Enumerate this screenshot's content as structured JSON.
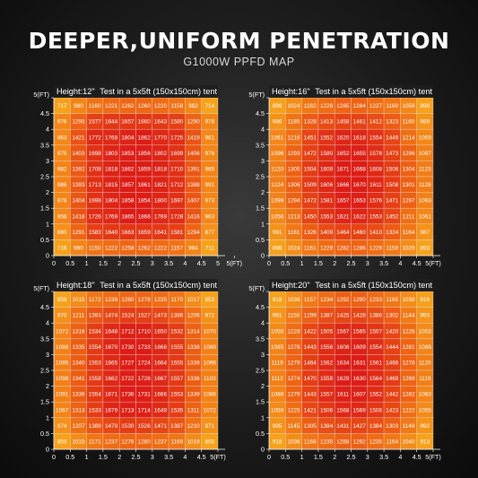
{
  "header": {
    "title": "DEEPER,UNIFORM PENETRATION",
    "subtitle": "G1000W PPFD MAP"
  },
  "colors": {
    "low": "#f6a21c",
    "mid": "#ee6414",
    "high": "#dc1c16",
    "background": "#1c1c1c"
  },
  "chart_data": [
    {
      "type": "heatmap",
      "height_label": "Height:12\"",
      "test_label": "Test in a 5x5ft (150x150cm) tent",
      "x_ticks": [
        "0",
        "0.5",
        "1",
        "1.5",
        "2",
        "2.5",
        "3",
        "3.5",
        "4",
        "4.5",
        "5",
        "5(FT)"
      ],
      "y_ticks": [
        "5(FT)",
        "4.5",
        "4",
        "3.5",
        "3",
        "2.5",
        "2",
        "1.5",
        "1",
        "0.5",
        "0"
      ],
      "xlim": [
        0,
        5
      ],
      "ylim": [
        0,
        5
      ],
      "rows": [
        [
          717,
          980,
          1160,
          1221,
          1262,
          1260,
          1220,
          1158,
          982,
          714
        ],
        [
          976,
          1295,
          1577,
          1644,
          1657,
          1660,
          1643,
          1580,
          1290,
          978
        ],
        [
          963,
          1421,
          1772,
          1768,
          1804,
          1862,
          1770,
          1725,
          1419,
          961
        ],
        [
          975,
          1403,
          1698,
          1803,
          1853,
          1856,
          1802,
          1699,
          1406,
          976
        ],
        [
          982,
          1392,
          1708,
          1818,
          1862,
          1859,
          1818,
          1710,
          1391,
          985
        ],
        [
          986,
          1393,
          1713,
          1815,
          1857,
          1861,
          1821,
          1712,
          1388,
          991
        ],
        [
          978,
          1404,
          1698,
          1804,
          1858,
          1854,
          1800,
          1697,
          1407,
          973
        ],
        [
          958,
          1418,
          1726,
          1769,
          1865,
          1866,
          1769,
          1728,
          1416,
          963
        ],
        [
          880,
          1291,
          1583,
          1640,
          1663,
          1659,
          1641,
          1581,
          1294,
          877
        ],
        [
          716,
          980,
          1150,
          1222,
          1258,
          1262,
          1222,
          1157,
          984,
          711
        ]
      ]
    },
    {
      "type": "heatmap",
      "height_label": "Height:16\"",
      "test_label": "Test in a 5x5ft (150x150cm) tent",
      "x_ticks": [
        "0",
        "0.5",
        "1",
        "1.5",
        "2",
        "2.5",
        "3",
        "3.5",
        "4",
        "4.5",
        "5(FT)"
      ],
      "y_ticks": [
        "5(FT)",
        "4.5",
        "4",
        "3.5",
        "3",
        "2.5",
        "2",
        "1.5",
        "1",
        "0.5",
        "0"
      ],
      "xlim": [
        0,
        5
      ],
      "ylim": [
        0,
        5
      ],
      "rows": [
        [
          899,
          1024,
          1162,
          1228,
          1285,
          1284,
          1227,
          1160,
          1056,
          896
        ],
        [
          986,
          1185,
          1328,
          1413,
          1458,
          1461,
          1412,
          1323,
          1160,
          989
        ],
        [
          1061,
          1216,
          1451,
          1552,
          1620,
          1618,
          1554,
          1449,
          1214,
          1059
        ],
        [
          1096,
          1293,
          1472,
          1580,
          1652,
          1655,
          1578,
          1473,
          1296,
          1097
        ],
        [
          1120,
          1305,
          1504,
          1609,
          1671,
          1668,
          1608,
          1506,
          1304,
          1123
        ],
        [
          1124,
          1306,
          1509,
          1606,
          1666,
          1670,
          1611,
          1508,
          1301,
          1128
        ],
        [
          1099,
          1294,
          1472,
          1581,
          1657,
          1653,
          1576,
          1471,
          1297,
          1093
        ],
        [
          1056,
          1213,
          1450,
          1553,
          1621,
          1622,
          1553,
          1452,
          1211,
          1061
        ],
        [
          991,
          1161,
          1326,
          1409,
          1464,
          1460,
          1410,
          1324,
          1164,
          987
        ],
        [
          898,
          1024,
          1161,
          1229,
          1282,
          1286,
          1229,
          1159,
          1028,
          893
        ]
      ]
    },
    {
      "type": "heatmap",
      "height_label": "Height:18\"",
      "test_label": "Test in a 5x5ft (150x150cm) tent",
      "x_ticks": [
        "0",
        "0.5",
        "1",
        "1.5",
        "2",
        "2.5",
        "3",
        "3.5",
        "4",
        "4.5",
        "5(FT)"
      ],
      "y_ticks": [
        "5(FT)",
        "4.5",
        "4",
        "3.5",
        "3",
        "2.5",
        "2",
        "1.5",
        "1",
        "0.5",
        "0"
      ],
      "xlim": [
        0,
        5
      ],
      "ylim": [
        0,
        5
      ],
      "rows": [
        [
          856,
          1015,
          1172,
          1236,
          1280,
          1278,
          1235,
          1170,
          1017,
          853
        ],
        [
          970,
          1211,
          1393,
          1474,
          1524,
          1527,
          1473,
          1386,
          1206,
          972
        ],
        [
          1072,
          1316,
          1534,
          1648,
          1712,
          1710,
          1650,
          1532,
          1314,
          1070
        ],
        [
          1088,
          1335,
          1554,
          1670,
          1730,
          1733,
          1668,
          1555,
          1338,
          1089
        ],
        [
          1095,
          1340,
          1553,
          1665,
          1727,
          1724,
          1664,
          1555,
          1339,
          1096
        ],
        [
          1098,
          1341,
          1558,
          1662,
          1722,
          1726,
          1667,
          1557,
          1336,
          1103
        ],
        [
          1091,
          1336,
          1554,
          1671,
          1736,
          1731,
          1666,
          1553,
          1339,
          1086
        ],
        [
          1067,
          1313,
          1533,
          1679,
          1713,
          1714,
          1649,
          1535,
          1311,
          1072
        ],
        [
          974,
          1207,
          1389,
          1470,
          1530,
          1526,
          1471,
          1387,
          1210,
          971
        ],
        [
          855,
          1015,
          1171,
          1237,
          1276,
          1280,
          1237,
          1169,
          1019,
          850
        ]
      ]
    },
    {
      "type": "heatmap",
      "height_label": "Height:20\"",
      "test_label": "Test in a 5x5ft (150x150cm) tent",
      "x_ticks": [
        "0",
        "0.5",
        "1",
        "1.5",
        "2",
        "2.5",
        "3",
        "3.5",
        "4",
        "4.5",
        "5(FT)"
      ],
      "y_ticks": [
        "5(FT)",
        "4.5",
        "4",
        "3.5",
        "3",
        "2.5",
        "2",
        "1.5",
        "1",
        "0.5",
        "0"
      ],
      "xlim": [
        0,
        5
      ],
      "ylim": [
        0,
        5
      ],
      "rows": [
        [
          919,
          1036,
          1157,
          1234,
          1292,
          1290,
          1233,
          1165,
          1038,
          916
        ],
        [
          991,
          1150,
          1299,
          1387,
          1425,
          1428,
          1386,
          1302,
          1144,
          993
        ],
        [
          1055,
          1228,
          1422,
          1505,
          1567,
          1565,
          1507,
          1420,
          1226,
          1053
        ],
        [
          1085,
          1278,
          1443,
          1556,
          1606,
          1609,
          1554,
          1444,
          1281,
          1086
        ],
        [
          1119,
          1279,
          1464,
          1562,
          1634,
          1631,
          1561,
          1466,
          1278,
          1120
        ],
        [
          1112,
          1274,
          1470,
          1559,
          1629,
          1630,
          1564,
          1469,
          1269,
          1119
        ],
        [
          1088,
          1279,
          1443,
          1557,
          1611,
          1607,
          1552,
          1442,
          1282,
          1083
        ],
        [
          1050,
          1225,
          1421,
          1506,
          1568,
          1569,
          1506,
          1423,
          1222,
          1055
        ],
        [
          995,
          1145,
          1305,
          1384,
          1431,
          1427,
          1384,
          1303,
          1149,
          992
        ],
        [
          918,
          1036,
          1166,
          1235,
          1288,
          1292,
          1235,
          1164,
          1040,
          913
        ]
      ]
    }
  ]
}
